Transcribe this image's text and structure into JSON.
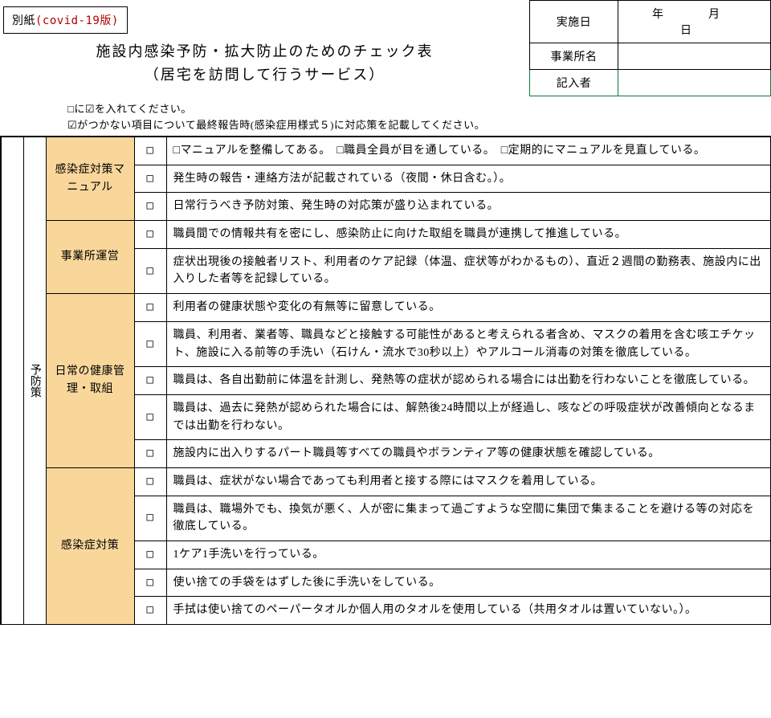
{
  "appendix": {
    "label": "別紙",
    "version": "(covid-19版)"
  },
  "date": {
    "label": "実施日",
    "value": "年　月　日"
  },
  "office": {
    "label": "事業所名",
    "value": ""
  },
  "recorder": {
    "label": "記入者",
    "value": ""
  },
  "title": {
    "line1": "施設内感染予防・拡大防止のためのチェック表",
    "line2": "（居宅を訪問して行うサービス）"
  },
  "notes": {
    "line1": "□に☑を入れてください。",
    "line2": "☑がつかない項目について最終報告時(感染症用様式５)に対応策を記載してください。"
  },
  "vert_label": "予防策",
  "checkbox_sym": "□",
  "sections": [
    {
      "name": "感染症対策マニュアル",
      "rows": [
        "□マニュアルを整備してある。　□職員全員が目を通している。　□定期的にマニュアルを見直している。",
        "発生時の報告・連絡方法が記載されている（夜間・休日含む。）。",
        "日常行うべき予防対策、発生時の対応策が盛り込まれている。"
      ]
    },
    {
      "name": "事業所運営",
      "rows": [
        "職員間での情報共有を密にし、感染防止に向けた取組を職員が連携して推進している。",
        "症状出現後の接触者リスト、利用者のケア記録（体温、症状等がわかるもの）、直近２週間の勤務表、施設内に出入りした者等を記録している。"
      ]
    },
    {
      "name": "日常の健康管理・取組",
      "rows": [
        "利用者の健康状態や変化の有無等に留意している。",
        "職員、利用者、業者等、職員などと接触する可能性があると考えられる者含め、マスクの着用を含む咳エチケット、施設に入る前等の手洗い（石けん・流水で30秒以上）やアルコール消毒の対策を徹底している。",
        "職員は、各自出勤前に体温を計測し、発熱等の症状が認められる場合には出勤を行わないことを徹底している。",
        "職員は、過去に発熱が認められた場合には、解熱後24時間以上が経過し、咳などの呼吸症状が改善傾向となるまでは出勤を行わない。",
        "施設内に出入りするパート職員等すべての職員やボランティア等の健康状態を確認している。"
      ]
    },
    {
      "name": "感染症対策",
      "rows": [
        "職員は、症状がない場合であっても利用者と接する際にはマスクを着用している。",
        "職員は、職場外でも、換気が悪く、人が密に集まって過ごすような空間に集団で集まることを避ける等の対応を徹底している。",
        "1ケア1手洗いを行っている。",
        "使い捨ての手袋をはずした後に手洗いをしている。",
        "手拭は使い捨てのペーパータオルか個人用のタオルを使用している（共用タオルは置いていない。）。"
      ]
    }
  ],
  "colors": {
    "section_bg": "#f9d79b",
    "red": "#b00000",
    "green": "#0a7a3a"
  }
}
